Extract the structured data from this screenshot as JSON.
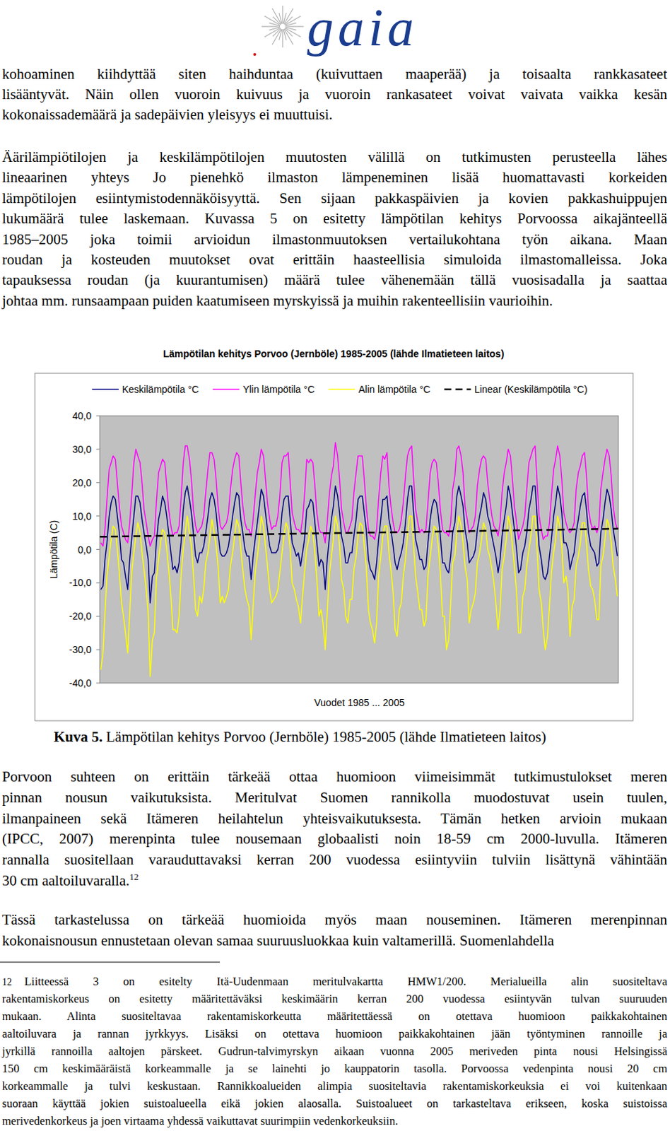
{
  "header": {
    "logo": "gaia"
  },
  "body_top": [
    {
      "lines": [
        "kohoaminen kiihdyttää siten haihduntaa (kuivuttaen maaperää) ja toisaalta rankkasateet",
        "lisääntyvät. Näin ollen vuoroin kuivuus ja vuoroin rankasateet voivat vaivata vaikka kesän",
        "kokonaissademäärä ja sadepäivien yleisyys ei muuttuisi."
      ]
    },
    {
      "lines": [
        "Äärilämpiötilojen ja keskilämpötilojen muutosten välillä on tutkimusten perusteella lähes",
        "lineaarinen yhteys Jo pienehkö ilmaston lämpeneminen lisää huomattavasti korkeiden",
        "lämpötilojen esiintymistodennäköisyyttä. Sen sijaan pakkaspäivien ja kovien pakkashuippujen",
        "lukumäärä tulee laskemaan. Kuvassa 5 on esitetty lämpötilan kehitys Porvoossa aikajänteellä",
        "1985–2005 joka toimii arvioidun ilmastonmuutoksen vertailukohtana työn aikana. Maan",
        "roudan ja kosteuden muutokset ovat erittäin haasteellisia simuloida ilmastomalleissa. Joka",
        "tapauksessa roudan (ja kuurantumisen) määrä tulee vähenemään tällä vuosisadalla ja saattaa",
        "johtaa mm. runsaampaan puiden kaatumiseen myrskyissä ja muihin rakenteellisiin vaurioihin."
      ]
    }
  ],
  "chart_data": {
    "type": "line",
    "title": "Lämpötilan kehitys Porvoo (Jernböle) 1985-2005 (lähde Ilmatieteen laitos)",
    "x_label": "Vuodet 1985 ... 2005",
    "y_label": "Lämpötila (C)",
    "legend": "top",
    "grid": false,
    "tick_labels": "y",
    "xlim": [
      1985,
      2006
    ],
    "ylim": [
      -40,
      40
    ],
    "yticks": [
      {
        "value": -40,
        "label": "-40,0"
      },
      {
        "value": -30,
        "label": "-30,0"
      },
      {
        "value": -20,
        "label": "-20,0"
      },
      {
        "value": -10,
        "label": "-10,0"
      },
      {
        "value": 0,
        "label": "0,0"
      },
      {
        "value": 10,
        "label": "10,0"
      },
      {
        "value": 20,
        "label": "20,0"
      },
      {
        "value": 30,
        "label": "30,0"
      },
      {
        "value": 40,
        "label": "40,0"
      }
    ],
    "x": [
      1985.04,
      1985.13,
      1985.21,
      1985.29,
      1985.38,
      1985.46,
      1985.54,
      1985.63,
      1985.71,
      1985.79,
      1985.88,
      1985.96,
      1986.04,
      1986.13,
      1986.21,
      1986.29,
      1986.38,
      1986.46,
      1986.54,
      1986.63,
      1986.71,
      1986.79,
      1986.88,
      1986.96,
      1987.04,
      1987.13,
      1987.21,
      1987.29,
      1987.38,
      1987.46,
      1987.54,
      1987.63,
      1987.71,
      1987.79,
      1987.88,
      1987.96,
      1988.04,
      1988.13,
      1988.21,
      1988.29,
      1988.38,
      1988.46,
      1988.54,
      1988.63,
      1988.71,
      1988.79,
      1988.88,
      1988.96,
      1989.04,
      1989.13,
      1989.21,
      1989.29,
      1989.38,
      1989.46,
      1989.54,
      1989.63,
      1989.71,
      1989.79,
      1989.88,
      1989.96,
      1990.04,
      1990.13,
      1990.21,
      1990.29,
      1990.38,
      1990.46,
      1990.54,
      1990.63,
      1990.71,
      1990.79,
      1990.88,
      1990.96,
      1991.04,
      1991.13,
      1991.21,
      1991.29,
      1991.38,
      1991.46,
      1991.54,
      1991.63,
      1991.71,
      1991.79,
      1991.88,
      1991.96,
      1992.04,
      1992.13,
      1992.21,
      1992.29,
      1992.38,
      1992.46,
      1992.54,
      1992.63,
      1992.71,
      1992.79,
      1992.88,
      1992.96,
      1993.04,
      1993.13,
      1993.21,
      1993.29,
      1993.38,
      1993.46,
      1993.54,
      1993.63,
      1993.71,
      1993.79,
      1993.88,
      1993.96,
      1994.04,
      1994.13,
      1994.21,
      1994.29,
      1994.38,
      1994.46,
      1994.54,
      1994.63,
      1994.71,
      1994.79,
      1994.88,
      1994.96,
      1995.04,
      1995.13,
      1995.21,
      1995.29,
      1995.38,
      1995.46,
      1995.54,
      1995.63,
      1995.71,
      1995.79,
      1995.88,
      1995.96,
      1996.04,
      1996.13,
      1996.21,
      1996.29,
      1996.38,
      1996.46,
      1996.54,
      1996.63,
      1996.71,
      1996.79,
      1996.88,
      1996.96,
      1997.04,
      1997.13,
      1997.21,
      1997.29,
      1997.38,
      1997.46,
      1997.54,
      1997.63,
      1997.71,
      1997.79,
      1997.88,
      1997.96,
      1998.04,
      1998.13,
      1998.21,
      1998.29,
      1998.38,
      1998.46,
      1998.54,
      1998.63,
      1998.71,
      1998.79,
      1998.88,
      1998.96,
      1999.04,
      1999.13,
      1999.21,
      1999.29,
      1999.38,
      1999.46,
      1999.54,
      1999.63,
      1999.71,
      1999.79,
      1999.88,
      1999.96,
      2000.04,
      2000.13,
      2000.21,
      2000.29,
      2000.38,
      2000.46,
      2000.54,
      2000.63,
      2000.71,
      2000.79,
      2000.88,
      2000.96,
      2001.04,
      2001.13,
      2001.21,
      2001.29,
      2001.38,
      2001.46,
      2001.54,
      2001.63,
      2001.71,
      2001.79,
      2001.88,
      2001.96,
      2002.04,
      2002.13,
      2002.21,
      2002.29,
      2002.38,
      2002.46,
      2002.54,
      2002.63,
      2002.71,
      2002.79,
      2002.88,
      2002.96,
      2003.04,
      2003.13,
      2003.21,
      2003.29,
      2003.38,
      2003.46,
      2003.54,
      2003.63,
      2003.71,
      2003.79,
      2003.88,
      2003.96,
      2004.04,
      2004.13,
      2004.21,
      2004.29,
      2004.38,
      2004.46,
      2004.54,
      2004.63,
      2004.71,
      2004.79,
      2004.88,
      2004.96,
      2005.04,
      2005.13,
      2005.21,
      2005.29,
      2005.38,
      2005.46,
      2005.54,
      2005.63,
      2005.71,
      2005.79,
      2005.88,
      2005.96
    ],
    "series": [
      {
        "name": "Keskilämpötila °C",
        "color": "#000080",
        "values": [
          -12,
          -11,
          -3,
          2,
          10,
          14,
          16,
          15,
          10,
          5,
          -3,
          -4,
          -8,
          -12,
          -3,
          3,
          10,
          16,
          16,
          14,
          9,
          5,
          1,
          -3,
          -16,
          -8,
          -7,
          2,
          9,
          12,
          16,
          14,
          10,
          5,
          -1,
          -6,
          -5,
          -7,
          -4,
          2,
          12,
          17,
          19,
          15,
          11,
          5,
          -2,
          -4,
          -1,
          -1,
          1,
          5,
          10,
          15,
          17,
          15,
          11,
          5,
          -1,
          -2,
          -2,
          -1,
          1,
          5,
          10,
          14,
          17,
          16,
          9,
          5,
          0,
          -2,
          -2,
          -9,
          -2,
          3,
          8,
          13,
          18,
          16,
          11,
          6,
          1,
          -1,
          -1,
          -1,
          0,
          3,
          11,
          15,
          16,
          16,
          9,
          2,
          0,
          -2,
          -1,
          -5,
          -1,
          3,
          12,
          13,
          15,
          14,
          8,
          2,
          -5,
          -3,
          -4,
          -12,
          -3,
          3,
          9,
          13,
          19,
          16,
          11,
          4,
          1,
          -4,
          -4,
          -1,
          -1,
          4,
          9,
          15,
          16,
          16,
          11,
          6,
          -3,
          -6,
          -7,
          -9,
          -4,
          3,
          9,
          15,
          15,
          16,
          9,
          6,
          1,
          -4,
          -6,
          -3,
          -1,
          2,
          8,
          15,
          19,
          19,
          11,
          3,
          0,
          -3,
          -3,
          -6,
          -5,
          2,
          9,
          13,
          15,
          14,
          10,
          4,
          -4,
          -4,
          -6,
          -7,
          -2,
          5,
          8,
          16,
          19,
          16,
          13,
          6,
          2,
          -4,
          -3,
          -2,
          0,
          6,
          10,
          13,
          17,
          15,
          10,
          8,
          4,
          1,
          -2,
          -7,
          -3,
          4,
          9,
          13,
          19,
          16,
          11,
          6,
          0,
          -7,
          -6,
          -1,
          1,
          5,
          12,
          15,
          19,
          19,
          10,
          1,
          -3,
          -8,
          -9,
          -7,
          -2,
          3,
          10,
          14,
          19,
          16,
          11,
          2,
          2,
          0,
          -6,
          -3,
          -1,
          5,
          9,
          13,
          16,
          17,
          12,
          5,
          1,
          0,
          -1,
          -5,
          -4,
          5,
          9,
          14,
          18,
          16,
          12,
          6,
          2,
          -2
        ]
      },
      {
        "name": "Ylin lämpötila °C",
        "color": "#ff00ff",
        "values": [
          2,
          1,
          6,
          15,
          24,
          26,
          28,
          27,
          20,
          13,
          7,
          5,
          3,
          2,
          8,
          16,
          26,
          30,
          28,
          26,
          20,
          12,
          8,
          4,
          1,
          3,
          4,
          14,
          23,
          25,
          27,
          26,
          19,
          12,
          7,
          4,
          5,
          5,
          7,
          15,
          26,
          31,
          31,
          27,
          21,
          12,
          7,
          5,
          6,
          7,
          10,
          17,
          24,
          29,
          29,
          27,
          21,
          13,
          7,
          6,
          7,
          8,
          11,
          18,
          24,
          27,
          29,
          28,
          20,
          13,
          8,
          6,
          6,
          4,
          9,
          16,
          23,
          26,
          30,
          28,
          21,
          14,
          9,
          6,
          7,
          7,
          10,
          16,
          26,
          28,
          28,
          29,
          20,
          11,
          8,
          6,
          6,
          5,
          9,
          16,
          27,
          26,
          27,
          26,
          19,
          11,
          6,
          5,
          5,
          2,
          8,
          16,
          22,
          25,
          32,
          28,
          21,
          12,
          8,
          5,
          5,
          7,
          9,
          17,
          23,
          28,
          28,
          28,
          21,
          13,
          6,
          4,
          4,
          3,
          6,
          15,
          23,
          28,
          27,
          29,
          19,
          13,
          8,
          5,
          5,
          6,
          9,
          14,
          22,
          28,
          30,
          31,
          21,
          12,
          8,
          5,
          6,
          5,
          6,
          14,
          23,
          26,
          27,
          26,
          20,
          12,
          6,
          5,
          5,
          4,
          8,
          18,
          22,
          30,
          31,
          28,
          23,
          13,
          9,
          5,
          6,
          7,
          10,
          19,
          24,
          27,
          28,
          27,
          20,
          15,
          10,
          7,
          6,
          4,
          8,
          17,
          23,
          26,
          30,
          28,
          21,
          13,
          8,
          3,
          5,
          7,
          10,
          18,
          26,
          28,
          30,
          31,
          20,
          10,
          6,
          3,
          4,
          4,
          8,
          16,
          24,
          27,
          31,
          28,
          21,
          11,
          8,
          6,
          5,
          6,
          8,
          18,
          23,
          25,
          28,
          29,
          22,
          12,
          8,
          6,
          7,
          5,
          7,
          18,
          23,
          27,
          30,
          28,
          22,
          13,
          8,
          6
        ]
      },
      {
        "name": "Alin lämpötila °C",
        "color": "#ffff00",
        "values": [
          -36,
          -31,
          -19,
          -8,
          -2,
          3,
          7,
          6,
          0,
          -7,
          -16,
          -20,
          -25,
          -31,
          -19,
          -7,
          -1,
          4,
          8,
          5,
          -1,
          -6,
          -12,
          -19,
          -38,
          -27,
          -25,
          -9,
          -3,
          2,
          6,
          5,
          0,
          -6,
          -14,
          -24,
          -24,
          -25,
          -20,
          -8,
          0,
          5,
          10,
          5,
          1,
          -7,
          -18,
          -20,
          -14,
          -16,
          -12,
          -4,
          -1,
          4,
          9,
          5,
          1,
          -5,
          -16,
          -14,
          -16,
          -14,
          -12,
          -5,
          -1,
          4,
          9,
          7,
          0,
          -6,
          -12,
          -15,
          -17,
          -27,
          -17,
          -7,
          -2,
          3,
          10,
          7,
          1,
          -5,
          -12,
          -16,
          -15,
          -14,
          -12,
          -7,
          -1,
          4,
          8,
          6,
          0,
          -10,
          -12,
          -15,
          -17,
          -22,
          -14,
          -7,
          0,
          3,
          7,
          5,
          -1,
          -9,
          -20,
          -18,
          -22,
          -30,
          -19,
          -8,
          -2,
          3,
          10,
          7,
          1,
          -9,
          -12,
          -20,
          -22,
          -15,
          -15,
          -6,
          -2,
          4,
          8,
          7,
          1,
          -5,
          -18,
          -22,
          -24,
          -28,
          -22,
          -8,
          -2,
          4,
          7,
          7,
          -1,
          -6,
          -13,
          -24,
          -26,
          -18,
          -16,
          -8,
          -3,
          4,
          10,
          10,
          1,
          -8,
          -13,
          -18,
          -18,
          -23,
          -21,
          -8,
          -2,
          3,
          7,
          6,
          1,
          -7,
          -20,
          -20,
          -30,
          -27,
          -16,
          -4,
          -2,
          5,
          10,
          7,
          2,
          -5,
          -9,
          -22,
          -18,
          -16,
          -13,
          -4,
          -1,
          3,
          8,
          6,
          0,
          -2,
          -6,
          -10,
          -16,
          -24,
          -18,
          -6,
          -2,
          3,
          10,
          7,
          1,
          -5,
          -13,
          -25,
          -25,
          -14,
          -12,
          -5,
          0,
          4,
          10,
          10,
          0,
          -12,
          -16,
          -24,
          -30,
          -26,
          -17,
          -7,
          -1,
          3,
          10,
          7,
          1,
          -10,
          -8,
          -12,
          -26,
          -17,
          -15,
          -5,
          -2,
          2,
          8,
          8,
          2,
          -6,
          -11,
          -12,
          -15,
          -21,
          -21,
          -5,
          -2,
          3,
          9,
          7,
          2,
          -5,
          -9,
          -14
        ]
      },
      {
        "name": "Linear (Keskilämpötila °C)",
        "color": "#000000",
        "line_style": "dashed",
        "x": [
          1985,
          2006
        ],
        "values": [
          3.8,
          6.2
        ]
      }
    ]
  },
  "caption": {
    "label": "Kuva 5.",
    "text": "Lämpötilan kehitys Porvoo (Jernböle) 1985-2005 (lähde Ilmatieteen laitos)"
  },
  "body_bottom": [
    {
      "lines": [
        "Porvoon suhteen on erittäin tärkeää ottaa huomioon viimeisimmät tutkimustulokset meren",
        "pinnan nousun vaikutuksista. Meritulvat Suomen rannikolla muodostuvat usein tuulen,",
        "ilmanpaineen sekä Itämeren heilahtelun yhteisvaikutuksesta. Tämän hetken arvioin mukaan",
        "(IPCC, 2007) merenpinta tulee nousemaan globaalisti noin 18-59 cm 2000-luvulla. Itämeren",
        "rannalla suositellaan varauduttavaksi kerran 200 vuodessa esiintyviin tulviin lisättynä vähintään",
        "30 cm aaltoiluvaralla."
      ],
      "footnote_ref": 12
    },
    {
      "lines": [
        "Tässä tarkastelussa on tärkeää huomioida myös maan nouseminen. Itämeren merenpinnan",
        "kokonaisnousun ennustetaan olevan samaa suuruusluokkaa kuin valtamerillä. Suomenlahdella"
      ]
    }
  ],
  "footnote": {
    "marker": 12,
    "lines": [
      "Liitteessä 3 on esitelty Itä-Uudenmaan meritulvakartta HMW1/200. Merialueilla alin suositeltava",
      "rakentamiskorkeus on esitetty määritettäväksi keskimäärin kerran 200 vuodessa esiintyvän tulvan suuruuden",
      "mukaan. Alinta suositeltavaa rakentamiskorkeutta määritettäessä on otettava huomioon paikkakohtainen",
      "aaltoiluvara ja rannan jyrkkyys. Lisäksi on otettava huomioon paikkakohtainen jään työntyminen rannoille ja",
      "jyrkillä rannoilla aaltojen pärskeet. Gudrun-talvimyrskyn aikaan vuonna 2005 meriveden pinta nousi Helsingissä",
      "150 cm keskimääräistä korkeammalle ja se lainehti jo kauppatorin tasolla. Porvoossa vedenpinta nousi 20 cm",
      "korkeammalle ja tulvi keskustaan. Rannikkoalueiden alimpia suositeltavia rakentamiskorkeuksia ei voi kuitenkaan",
      "suoraan käyttää jokien suistoalueella eikä jokien alaosalla. Suistoalueet on tarkasteltava erikseen, koska suistoissa",
      "merivedenkorkeus ja joen virtaama yhdessä vaikuttavat suurimpiin vedenkorkeuksiin."
    ]
  }
}
